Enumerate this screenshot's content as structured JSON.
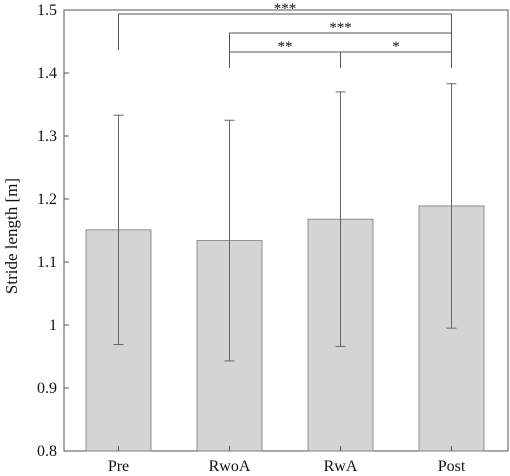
{
  "chart_data": {
    "type": "bar",
    "categories": [
      "Pre",
      "RwoA",
      "RwA",
      "Post"
    ],
    "values": [
      1.151,
      1.134,
      1.168,
      1.189
    ],
    "error": [
      0.182,
      0.191,
      0.202,
      0.194
    ],
    "ylabel": "Stride length [m]",
    "xlabel": "",
    "ylim": [
      0.8,
      1.5
    ],
    "yticks": [
      0.8,
      0.9,
      1.0,
      1.1,
      1.2,
      1.3,
      1.4,
      1.5
    ],
    "ytick_labels": [
      "0.8",
      "0.9",
      "1",
      "1.1",
      "1.2",
      "1.3",
      "1.4",
      "1.5"
    ],
    "bar_color": "#d4d4d4",
    "significance": [
      {
        "from": 0,
        "to": 3,
        "label": "***"
      },
      {
        "from": 1,
        "to": 3,
        "label": "***"
      },
      {
        "from": 1,
        "to": 2,
        "label": "**"
      },
      {
        "from": 2,
        "to": 3,
        "label": "*"
      }
    ],
    "grid": false
  }
}
